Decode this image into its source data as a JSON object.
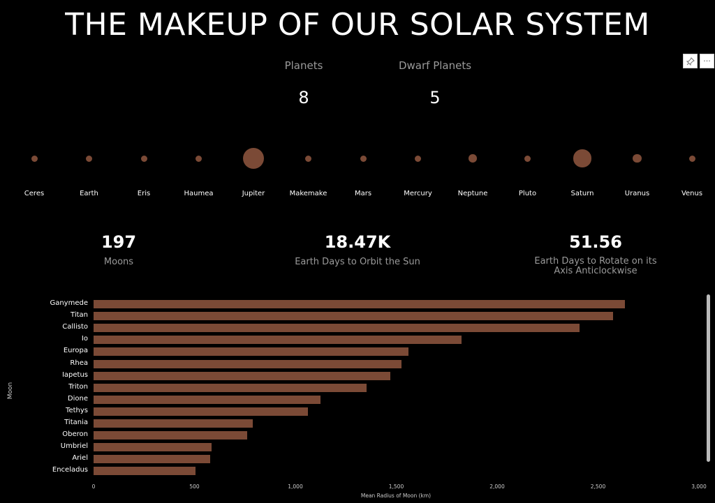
{
  "title": "THE MAKEUP OF OUR SOLAR SYSTEM",
  "kpis": {
    "planets_label": "Planets",
    "planets_value": "8",
    "dwarf_label": "Dwarf Planets",
    "dwarf_value": "5",
    "moons_value": "197",
    "moons_label": "Moons",
    "orbit_value": "18.47K",
    "orbit_label": "Earth Days to Orbit the Sun",
    "rotate_value": "51.56",
    "rotate_label": "Earth Days to Rotate on its Axis Anticlockwise"
  },
  "toolbar": {
    "pin_icon": "pin-icon",
    "more_label": "···"
  },
  "bodies": [
    {
      "name": "Ceres",
      "size": 1
    },
    {
      "name": "Earth",
      "size": 1
    },
    {
      "name": "Eris",
      "size": 1
    },
    {
      "name": "Haumea",
      "size": 1
    },
    {
      "name": "Jupiter",
      "size": 3.4
    },
    {
      "name": "Makemake",
      "size": 1
    },
    {
      "name": "Mars",
      "size": 1
    },
    {
      "name": "Mercury",
      "size": 1
    },
    {
      "name": "Neptune",
      "size": 1.3
    },
    {
      "name": "Pluto",
      "size": 1
    },
    {
      "name": "Saturn",
      "size": 2.8
    },
    {
      "name": "Uranus",
      "size": 1.4
    },
    {
      "name": "Venus",
      "size": 1
    }
  ],
  "chart_data": {
    "type": "bar",
    "orientation": "horizontal",
    "xlabel": "Mean Radius of Moon (km)",
    "ylabel": "Moon",
    "xlim": [
      0,
      3000
    ],
    "xticks": [
      "0",
      "500",
      "1,000",
      "1,500",
      "2,000",
      "2,500",
      "3,000"
    ],
    "xtick_values": [
      0,
      500,
      1000,
      1500,
      2000,
      2500,
      3000
    ],
    "categories": [
      "Ganymede",
      "Titan",
      "Callisto",
      "Io",
      "Europa",
      "Rhea",
      "Iapetus",
      "Triton",
      "Dione",
      "Tethys",
      "Titania",
      "Oberon",
      "Umbriel",
      "Ariel",
      "Enceladus"
    ],
    "values": [
      2634,
      2575,
      2410,
      1822,
      1561,
      1527,
      1469,
      1353,
      1123,
      1062,
      789,
      761,
      585,
      579,
      504
    ],
    "color": "#7b4a36"
  }
}
